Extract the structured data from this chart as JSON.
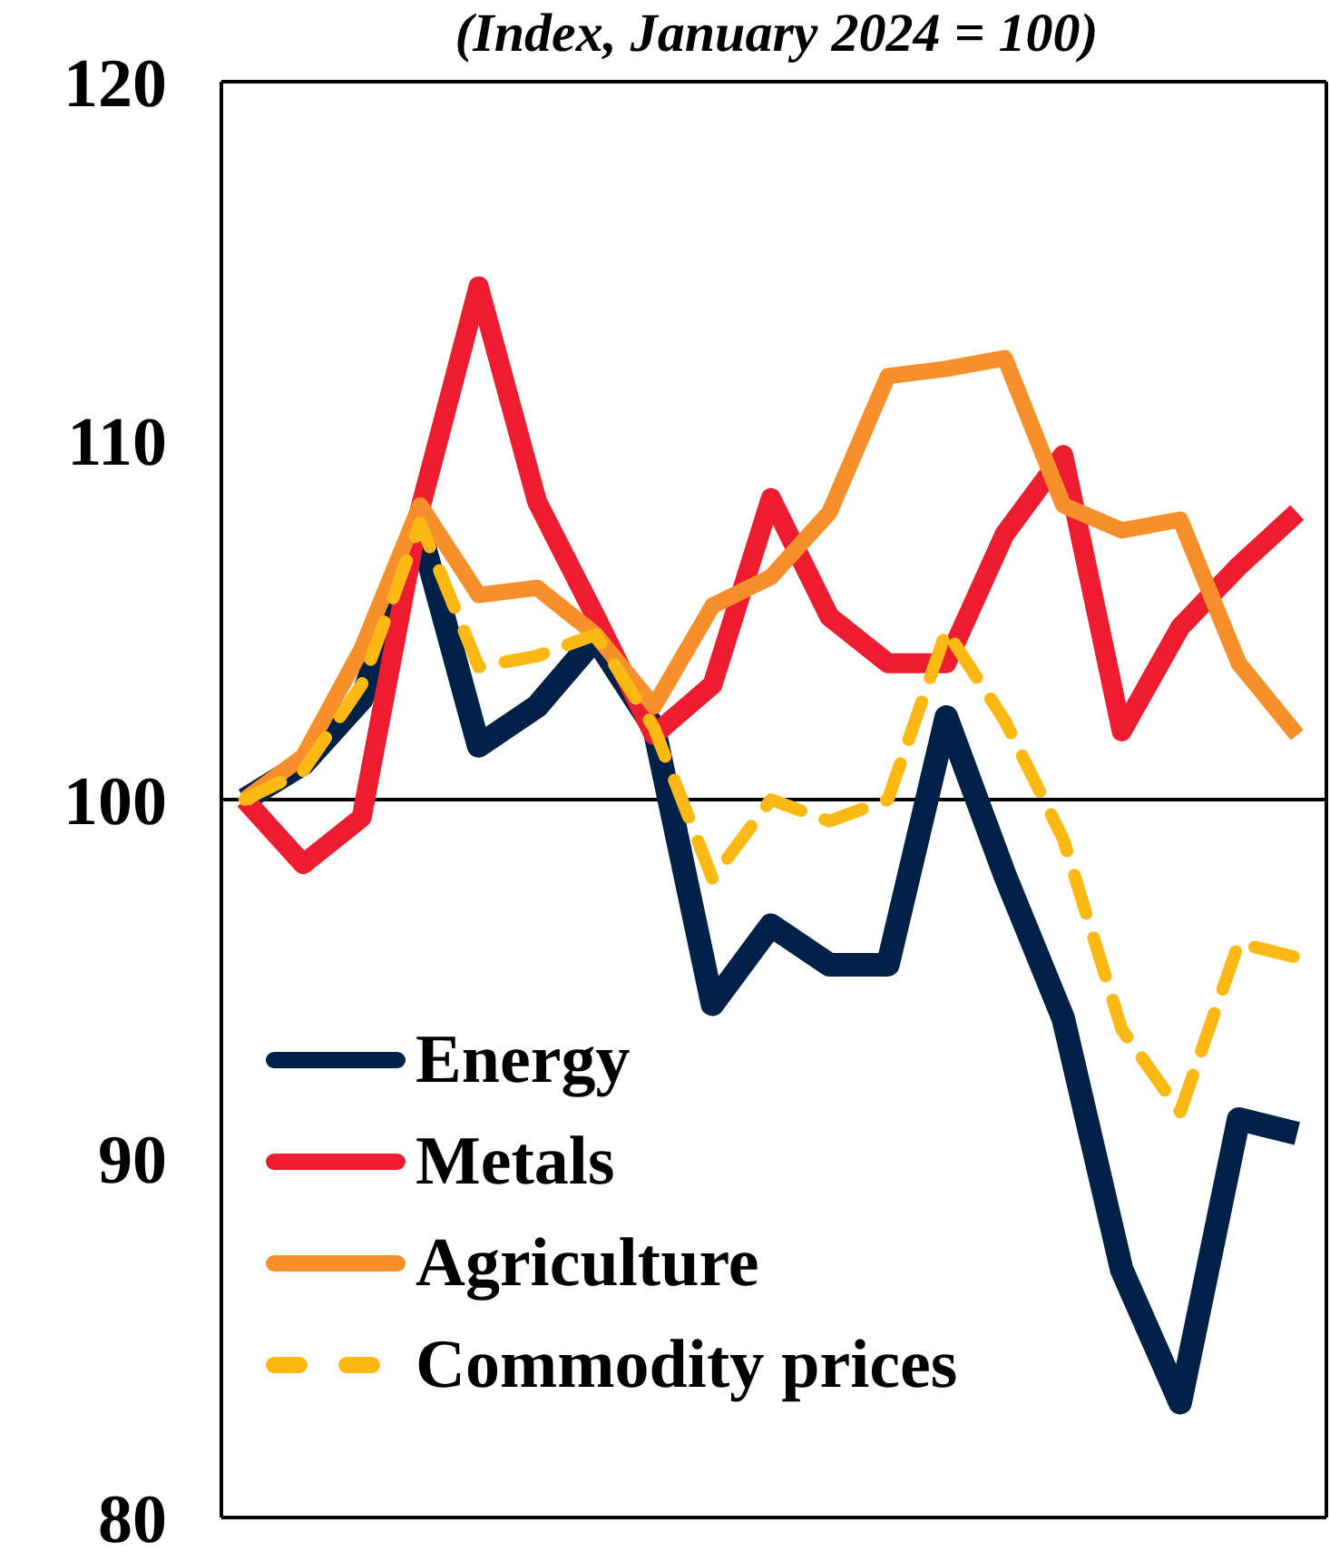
{
  "chart_data": {
    "type": "line",
    "title": "(Index, January 2024 = 100)",
    "categories": [
      null,
      null,
      null,
      null,
      null,
      null,
      null,
      null,
      null,
      null,
      null,
      null,
      null,
      null,
      null,
      null,
      null,
      null,
      null
    ],
    "series": [
      {
        "name": "Energy",
        "color": "#002147",
        "line_style": "solid",
        "values": [
          100,
          101.0,
          102.8,
          107.5,
          101.5,
          102.6,
          104.5,
          102.0,
          94.3,
          96.5,
          95.4,
          95.4,
          102.3,
          97.9,
          93.9,
          86.9,
          83.2,
          91.1,
          90.7
        ]
      },
      {
        "name": "Metals",
        "color": "#ed1c2e",
        "line_style": "solid",
        "values": [
          100,
          98.2,
          99.5,
          108.1,
          114.3,
          108.3,
          105.1,
          101.8,
          103.2,
          108.4,
          105.1,
          103.8,
          103.8,
          107.4,
          109.6,
          101.9,
          104.8,
          106.5,
          108.0
        ]
      },
      {
        "name": "Agriculture",
        "color": "#f7902a",
        "line_style": "solid",
        "values": [
          100,
          101.2,
          104.2,
          108.2,
          105.7,
          105.9,
          104.6,
          102.6,
          105.4,
          106.2,
          108.0,
          111.8,
          112.0,
          112.3,
          108.2,
          107.5,
          107.8,
          103.8,
          101.8
        ]
      },
      {
        "name": "Commodity prices",
        "color": "#fdb913",
        "line_style": "dashed",
        "values": [
          100,
          100.8,
          103.2,
          107.7,
          103.7,
          104.0,
          104.6,
          102.0,
          97.8,
          100.0,
          99.4,
          100.0,
          104.7,
          102.2,
          98.9,
          93.6,
          91.3,
          96.0,
          95.6
        ]
      }
    ],
    "ylim": [
      80,
      120
    ],
    "yticks": [
      80,
      90,
      100,
      110,
      120
    ],
    "ref_lines": [
      {
        "axis": "y",
        "value": 100,
        "color": "#000000"
      }
    ],
    "tick_labels": "y",
    "grid": false,
    "legend": "bottom left",
    "marker": "none"
  }
}
